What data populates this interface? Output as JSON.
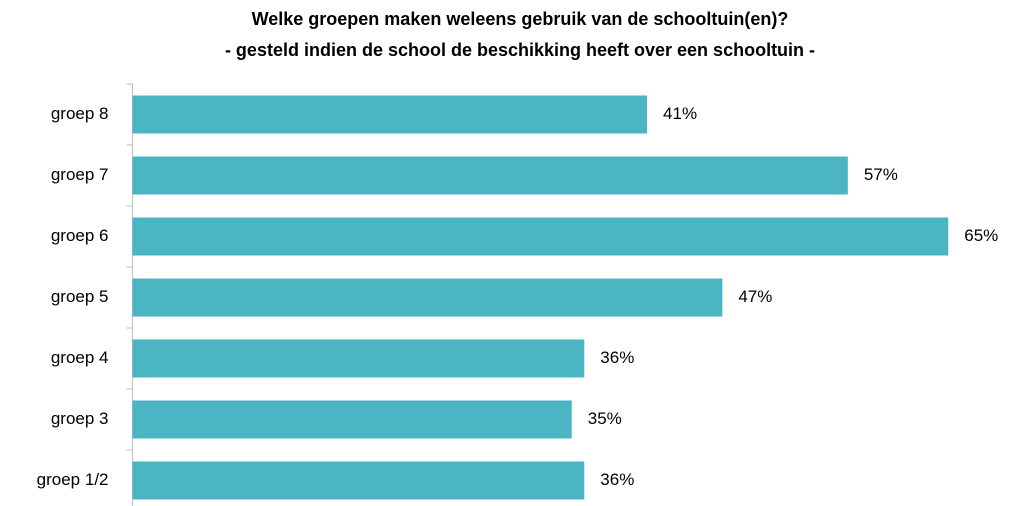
{
  "chart_data": {
    "type": "barh",
    "title": "Welke groepen maken weleens gebruik van de schooltuin(en)?",
    "subtitle": "- gesteld indien de school de beschikking heeft over een schooltuin -",
    "categories": [
      "groep 8",
      "groep 7",
      "groep 6",
      "groep 5",
      "groep 4",
      "groep 3",
      "groep 1/2"
    ],
    "values": [
      41,
      57,
      65,
      47,
      36,
      35,
      36
    ],
    "value_labels": [
      "41%",
      "57%",
      "65%",
      "47%",
      "36%",
      "35%",
      "36%"
    ],
    "color": "#4bb5c4"
  }
}
